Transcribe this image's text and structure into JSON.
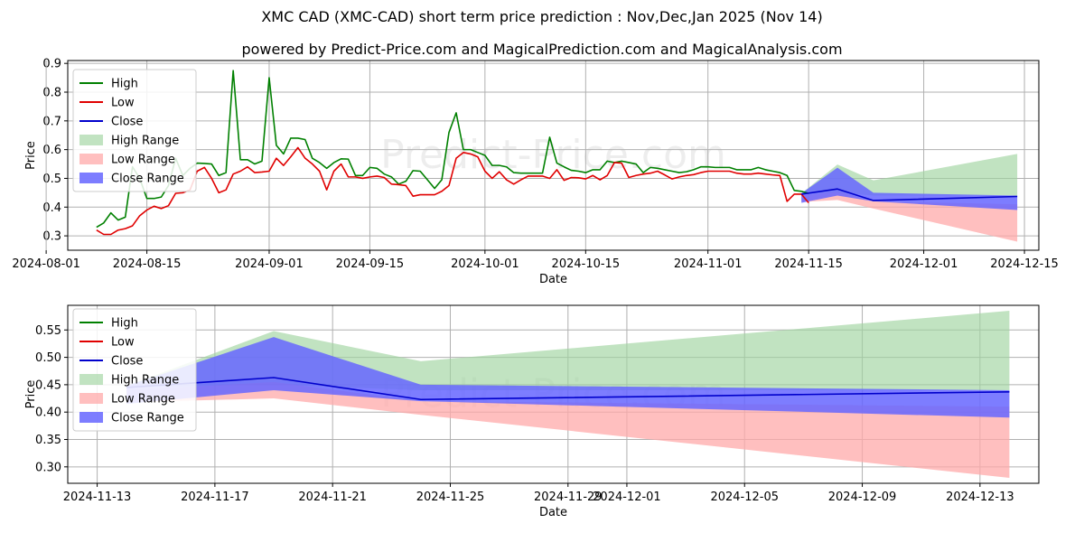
{
  "title": "XMC CAD (XMC-CAD) short term price prediction : Nov,Dec,Jan 2025 (Nov 14)",
  "subtitle": "powered by Predict-Price.com and MagicalPrediction.com and MagicalAnalysis.com",
  "watermark": "Predict-Price.com",
  "colors": {
    "high": "#008000",
    "low": "#e00000",
    "close": "#0000cc",
    "high_range": "#9fd49f",
    "low_range": "#ffaaaa",
    "close_range": "#6666ff"
  },
  "chart_data": [
    {
      "type": "line",
      "name": "history",
      "xlabel": "Date",
      "ylabel": "Price",
      "xlim": [
        "2024-08-04",
        "2024-12-17"
      ],
      "ylim": [
        0.25,
        0.91
      ],
      "yticks": [
        0.3,
        0.4,
        0.5,
        0.6,
        0.7,
        0.8,
        0.9
      ],
      "yticklabels": [
        "0.3",
        "0.4",
        "0.5",
        "0.6",
        "0.7",
        "0.8",
        "0.9"
      ],
      "xticks": [
        "2024-08-01",
        "2024-08-15",
        "2024-09-01",
        "2024-09-15",
        "2024-10-01",
        "2024-10-15",
        "2024-11-01",
        "2024-11-15",
        "2024-12-01",
        "2024-12-15"
      ],
      "xticklabels": [
        "2024-08-01",
        "2024-08-15",
        "2024-09-01",
        "2024-09-15",
        "2024-10-01",
        "2024-10-15",
        "2024-11-01",
        "2024-11-15",
        "2024-12-01",
        "2024-12-15"
      ],
      "legend": [
        "High",
        "Low",
        "Close",
        "High Range",
        "Low Range",
        "Close Range"
      ],
      "legend_position": "top-left",
      "grid": true,
      "high": [
        [
          "2024-08-08",
          0.33
        ],
        [
          "2024-08-09",
          0.345
        ],
        [
          "2024-08-10",
          0.38
        ],
        [
          "2024-08-11",
          0.355
        ],
        [
          "2024-08-12",
          0.365
        ],
        [
          "2024-08-13",
          0.54
        ],
        [
          "2024-08-14",
          0.5
        ],
        [
          "2024-08-15",
          0.43
        ],
        [
          "2024-08-16",
          0.43
        ],
        [
          "2024-08-17",
          0.435
        ],
        [
          "2024-08-18",
          0.475
        ],
        [
          "2024-08-19",
          0.57
        ],
        [
          "2024-08-20",
          0.51
        ],
        [
          "2024-08-21",
          0.535
        ],
        [
          "2024-08-22",
          0.553
        ],
        [
          "2024-08-23",
          0.552
        ],
        [
          "2024-08-24",
          0.55
        ],
        [
          "2024-08-25",
          0.51
        ],
        [
          "2024-08-26",
          0.52
        ],
        [
          "2024-08-27",
          0.875
        ],
        [
          "2024-08-28",
          0.565
        ],
        [
          "2024-08-29",
          0.565
        ],
        [
          "2024-08-30",
          0.55
        ],
        [
          "2024-08-31",
          0.56
        ],
        [
          "2024-09-01",
          0.85
        ],
        [
          "2024-09-02",
          0.615
        ],
        [
          "2024-09-03",
          0.585
        ],
        [
          "2024-09-04",
          0.64
        ],
        [
          "2024-09-05",
          0.64
        ],
        [
          "2024-09-06",
          0.635
        ],
        [
          "2024-09-07",
          0.57
        ],
        [
          "2024-09-08",
          0.555
        ],
        [
          "2024-09-09",
          0.535
        ],
        [
          "2024-09-10",
          0.555
        ],
        [
          "2024-09-11",
          0.568
        ],
        [
          "2024-09-12",
          0.567
        ],
        [
          "2024-09-13",
          0.51
        ],
        [
          "2024-09-14",
          0.51
        ],
        [
          "2024-09-15",
          0.538
        ],
        [
          "2024-09-16",
          0.535
        ],
        [
          "2024-09-17",
          0.515
        ],
        [
          "2024-09-18",
          0.505
        ],
        [
          "2024-09-19",
          0.48
        ],
        [
          "2024-09-20",
          0.49
        ],
        [
          "2024-09-21",
          0.527
        ],
        [
          "2024-09-22",
          0.525
        ],
        [
          "2024-09-23",
          0.495
        ],
        [
          "2024-09-24",
          0.465
        ],
        [
          "2024-09-25",
          0.495
        ],
        [
          "2024-09-26",
          0.66
        ],
        [
          "2024-09-27",
          0.728
        ],
        [
          "2024-09-28",
          0.6
        ],
        [
          "2024-09-29",
          0.6
        ],
        [
          "2024-09-30",
          0.59
        ],
        [
          "2024-10-01",
          0.58
        ],
        [
          "2024-10-02",
          0.545
        ],
        [
          "2024-10-03",
          0.545
        ],
        [
          "2024-10-04",
          0.54
        ],
        [
          "2024-10-05",
          0.52
        ],
        [
          "2024-10-06",
          0.518
        ],
        [
          "2024-10-07",
          0.518
        ],
        [
          "2024-10-08",
          0.518
        ],
        [
          "2024-10-09",
          0.518
        ],
        [
          "2024-10-10",
          0.643
        ],
        [
          "2024-10-11",
          0.553
        ],
        [
          "2024-10-12",
          0.54
        ],
        [
          "2024-10-13",
          0.528
        ],
        [
          "2024-10-14",
          0.525
        ],
        [
          "2024-10-15",
          0.52
        ],
        [
          "2024-10-16",
          0.53
        ],
        [
          "2024-10-17",
          0.53
        ],
        [
          "2024-10-18",
          0.56
        ],
        [
          "2024-10-19",
          0.555
        ],
        [
          "2024-10-20",
          0.56
        ],
        [
          "2024-10-21",
          0.555
        ],
        [
          "2024-10-22",
          0.55
        ],
        [
          "2024-10-23",
          0.52
        ],
        [
          "2024-10-24",
          0.538
        ],
        [
          "2024-10-25",
          0.535
        ],
        [
          "2024-10-26",
          0.53
        ],
        [
          "2024-10-27",
          0.525
        ],
        [
          "2024-10-28",
          0.52
        ],
        [
          "2024-10-29",
          0.523
        ],
        [
          "2024-10-30",
          0.53
        ],
        [
          "2024-10-31",
          0.54
        ],
        [
          "2024-11-01",
          0.54
        ],
        [
          "2024-11-02",
          0.538
        ],
        [
          "2024-11-03",
          0.538
        ],
        [
          "2024-11-04",
          0.538
        ],
        [
          "2024-11-05",
          0.53
        ],
        [
          "2024-11-06",
          0.53
        ],
        [
          "2024-11-07",
          0.53
        ],
        [
          "2024-11-08",
          0.538
        ],
        [
          "2024-11-09",
          0.53
        ],
        [
          "2024-11-10",
          0.525
        ],
        [
          "2024-11-11",
          0.52
        ],
        [
          "2024-11-12",
          0.51
        ],
        [
          "2024-11-13",
          0.458
        ],
        [
          "2024-11-14",
          0.455
        ],
        [
          "2024-11-15",
          0.448
        ]
      ],
      "low": [
        [
          "2024-08-08",
          0.32
        ],
        [
          "2024-08-09",
          0.305
        ],
        [
          "2024-08-10",
          0.305
        ],
        [
          "2024-08-11",
          0.32
        ],
        [
          "2024-08-12",
          0.325
        ],
        [
          "2024-08-13",
          0.335
        ],
        [
          "2024-08-14",
          0.37
        ],
        [
          "2024-08-15",
          0.39
        ],
        [
          "2024-08-16",
          0.403
        ],
        [
          "2024-08-17",
          0.395
        ],
        [
          "2024-08-18",
          0.405
        ],
        [
          "2024-08-19",
          0.448
        ],
        [
          "2024-08-20",
          0.45
        ],
        [
          "2024-08-21",
          0.46
        ],
        [
          "2024-08-22",
          0.525
        ],
        [
          "2024-08-23",
          0.538
        ],
        [
          "2024-08-24",
          0.5
        ],
        [
          "2024-08-25",
          0.45
        ],
        [
          "2024-08-26",
          0.46
        ],
        [
          "2024-08-27",
          0.515
        ],
        [
          "2024-08-28",
          0.525
        ],
        [
          "2024-08-29",
          0.54
        ],
        [
          "2024-08-30",
          0.52
        ],
        [
          "2024-08-31",
          0.522
        ],
        [
          "2024-09-01",
          0.525
        ],
        [
          "2024-09-02",
          0.57
        ],
        [
          "2024-09-03",
          0.545
        ],
        [
          "2024-09-04",
          0.575
        ],
        [
          "2024-09-05",
          0.607
        ],
        [
          "2024-09-06",
          0.57
        ],
        [
          "2024-09-07",
          0.55
        ],
        [
          "2024-09-08",
          0.525
        ],
        [
          "2024-09-09",
          0.46
        ],
        [
          "2024-09-10",
          0.525
        ],
        [
          "2024-09-11",
          0.55
        ],
        [
          "2024-09-12",
          0.505
        ],
        [
          "2024-09-13",
          0.505
        ],
        [
          "2024-09-14",
          0.5
        ],
        [
          "2024-09-15",
          0.505
        ],
        [
          "2024-09-16",
          0.508
        ],
        [
          "2024-09-17",
          0.503
        ],
        [
          "2024-09-18",
          0.48
        ],
        [
          "2024-09-19",
          0.478
        ],
        [
          "2024-09-20",
          0.475
        ],
        [
          "2024-09-21",
          0.438
        ],
        [
          "2024-09-22",
          0.443
        ],
        [
          "2024-09-23",
          0.443
        ],
        [
          "2024-09-24",
          0.443
        ],
        [
          "2024-09-25",
          0.455
        ],
        [
          "2024-09-26",
          0.475
        ],
        [
          "2024-09-27",
          0.57
        ],
        [
          "2024-09-28",
          0.59
        ],
        [
          "2024-09-29",
          0.585
        ],
        [
          "2024-09-30",
          0.575
        ],
        [
          "2024-10-01",
          0.525
        ],
        [
          "2024-10-02",
          0.5
        ],
        [
          "2024-10-03",
          0.523
        ],
        [
          "2024-10-04",
          0.495
        ],
        [
          "2024-10-05",
          0.48
        ],
        [
          "2024-10-06",
          0.495
        ],
        [
          "2024-10-07",
          0.508
        ],
        [
          "2024-10-08",
          0.508
        ],
        [
          "2024-10-09",
          0.508
        ],
        [
          "2024-10-10",
          0.5
        ],
        [
          "2024-10-11",
          0.53
        ],
        [
          "2024-10-12",
          0.493
        ],
        [
          "2024-10-13",
          0.503
        ],
        [
          "2024-10-14",
          0.502
        ],
        [
          "2024-10-15",
          0.498
        ],
        [
          "2024-10-16",
          0.51
        ],
        [
          "2024-10-17",
          0.495
        ],
        [
          "2024-10-18",
          0.51
        ],
        [
          "2024-10-19",
          0.555
        ],
        [
          "2024-10-20",
          0.553
        ],
        [
          "2024-10-21",
          0.503
        ],
        [
          "2024-10-22",
          0.51
        ],
        [
          "2024-10-23",
          0.515
        ],
        [
          "2024-10-24",
          0.518
        ],
        [
          "2024-10-25",
          0.525
        ],
        [
          "2024-10-26",
          0.512
        ],
        [
          "2024-10-27",
          0.498
        ],
        [
          "2024-10-28",
          0.505
        ],
        [
          "2024-10-29",
          0.51
        ],
        [
          "2024-10-30",
          0.513
        ],
        [
          "2024-10-31",
          0.52
        ],
        [
          "2024-11-01",
          0.525
        ],
        [
          "2024-11-02",
          0.525
        ],
        [
          "2024-11-03",
          0.525
        ],
        [
          "2024-11-04",
          0.525
        ],
        [
          "2024-11-05",
          0.518
        ],
        [
          "2024-11-06",
          0.515
        ],
        [
          "2024-11-07",
          0.515
        ],
        [
          "2024-11-08",
          0.518
        ],
        [
          "2024-11-09",
          0.515
        ],
        [
          "2024-11-10",
          0.512
        ],
        [
          "2024-11-11",
          0.51
        ],
        [
          "2024-11-12",
          0.42
        ],
        [
          "2024-11-13",
          0.445
        ],
        [
          "2024-11-14",
          0.445
        ],
        [
          "2024-11-15",
          0.415
        ]
      ]
    },
    {
      "type": "line",
      "name": "forecast",
      "xlabel": "Date",
      "ylabel": "Price",
      "xlim": [
        "2024-11-12",
        "2024-12-15"
      ],
      "ylim": [
        0.27,
        0.595
      ],
      "yticks": [
        0.3,
        0.35,
        0.4,
        0.45,
        0.5,
        0.55
      ],
      "yticklabels": [
        "0.30",
        "0.35",
        "0.40",
        "0.45",
        "0.50",
        "0.55"
      ],
      "xticks": [
        "2024-11-13",
        "2024-11-17",
        "2024-11-21",
        "2024-11-25",
        "2024-11-29",
        "2024-12-01",
        "2024-12-05",
        "2024-12-09",
        "2024-12-13"
      ],
      "xticklabels": [
        "2024-11-13",
        "2024-11-17",
        "2024-11-21",
        "2024-11-25",
        "2024-11-29",
        "2024-12-01",
        "2024-12-05",
        "2024-12-09",
        "2024-12-13"
      ],
      "legend": [
        "High",
        "Low",
        "Close",
        "High Range",
        "Low Range",
        "Close Range"
      ],
      "legend_position": "top-left",
      "grid": true,
      "forecast_dates": [
        "2024-11-14",
        "2024-11-19",
        "2024-11-24",
        "2024-12-14"
      ],
      "close": [
        0.445,
        0.463,
        0.423,
        0.437
      ],
      "high_range": {
        "upper": [
          0.448,
          0.548,
          0.493,
          0.585
        ],
        "lower": [
          0.445,
          0.45,
          0.44,
          0.44
        ]
      },
      "low_range": {
        "upper": [
          0.44,
          0.455,
          0.42,
          0.41
        ],
        "lower": [
          0.418,
          0.425,
          0.395,
          0.28
        ]
      },
      "close_range": {
        "upper": [
          0.448,
          0.537,
          0.45,
          0.44
        ],
        "lower": [
          0.415,
          0.44,
          0.42,
          0.39
        ]
      }
    }
  ]
}
